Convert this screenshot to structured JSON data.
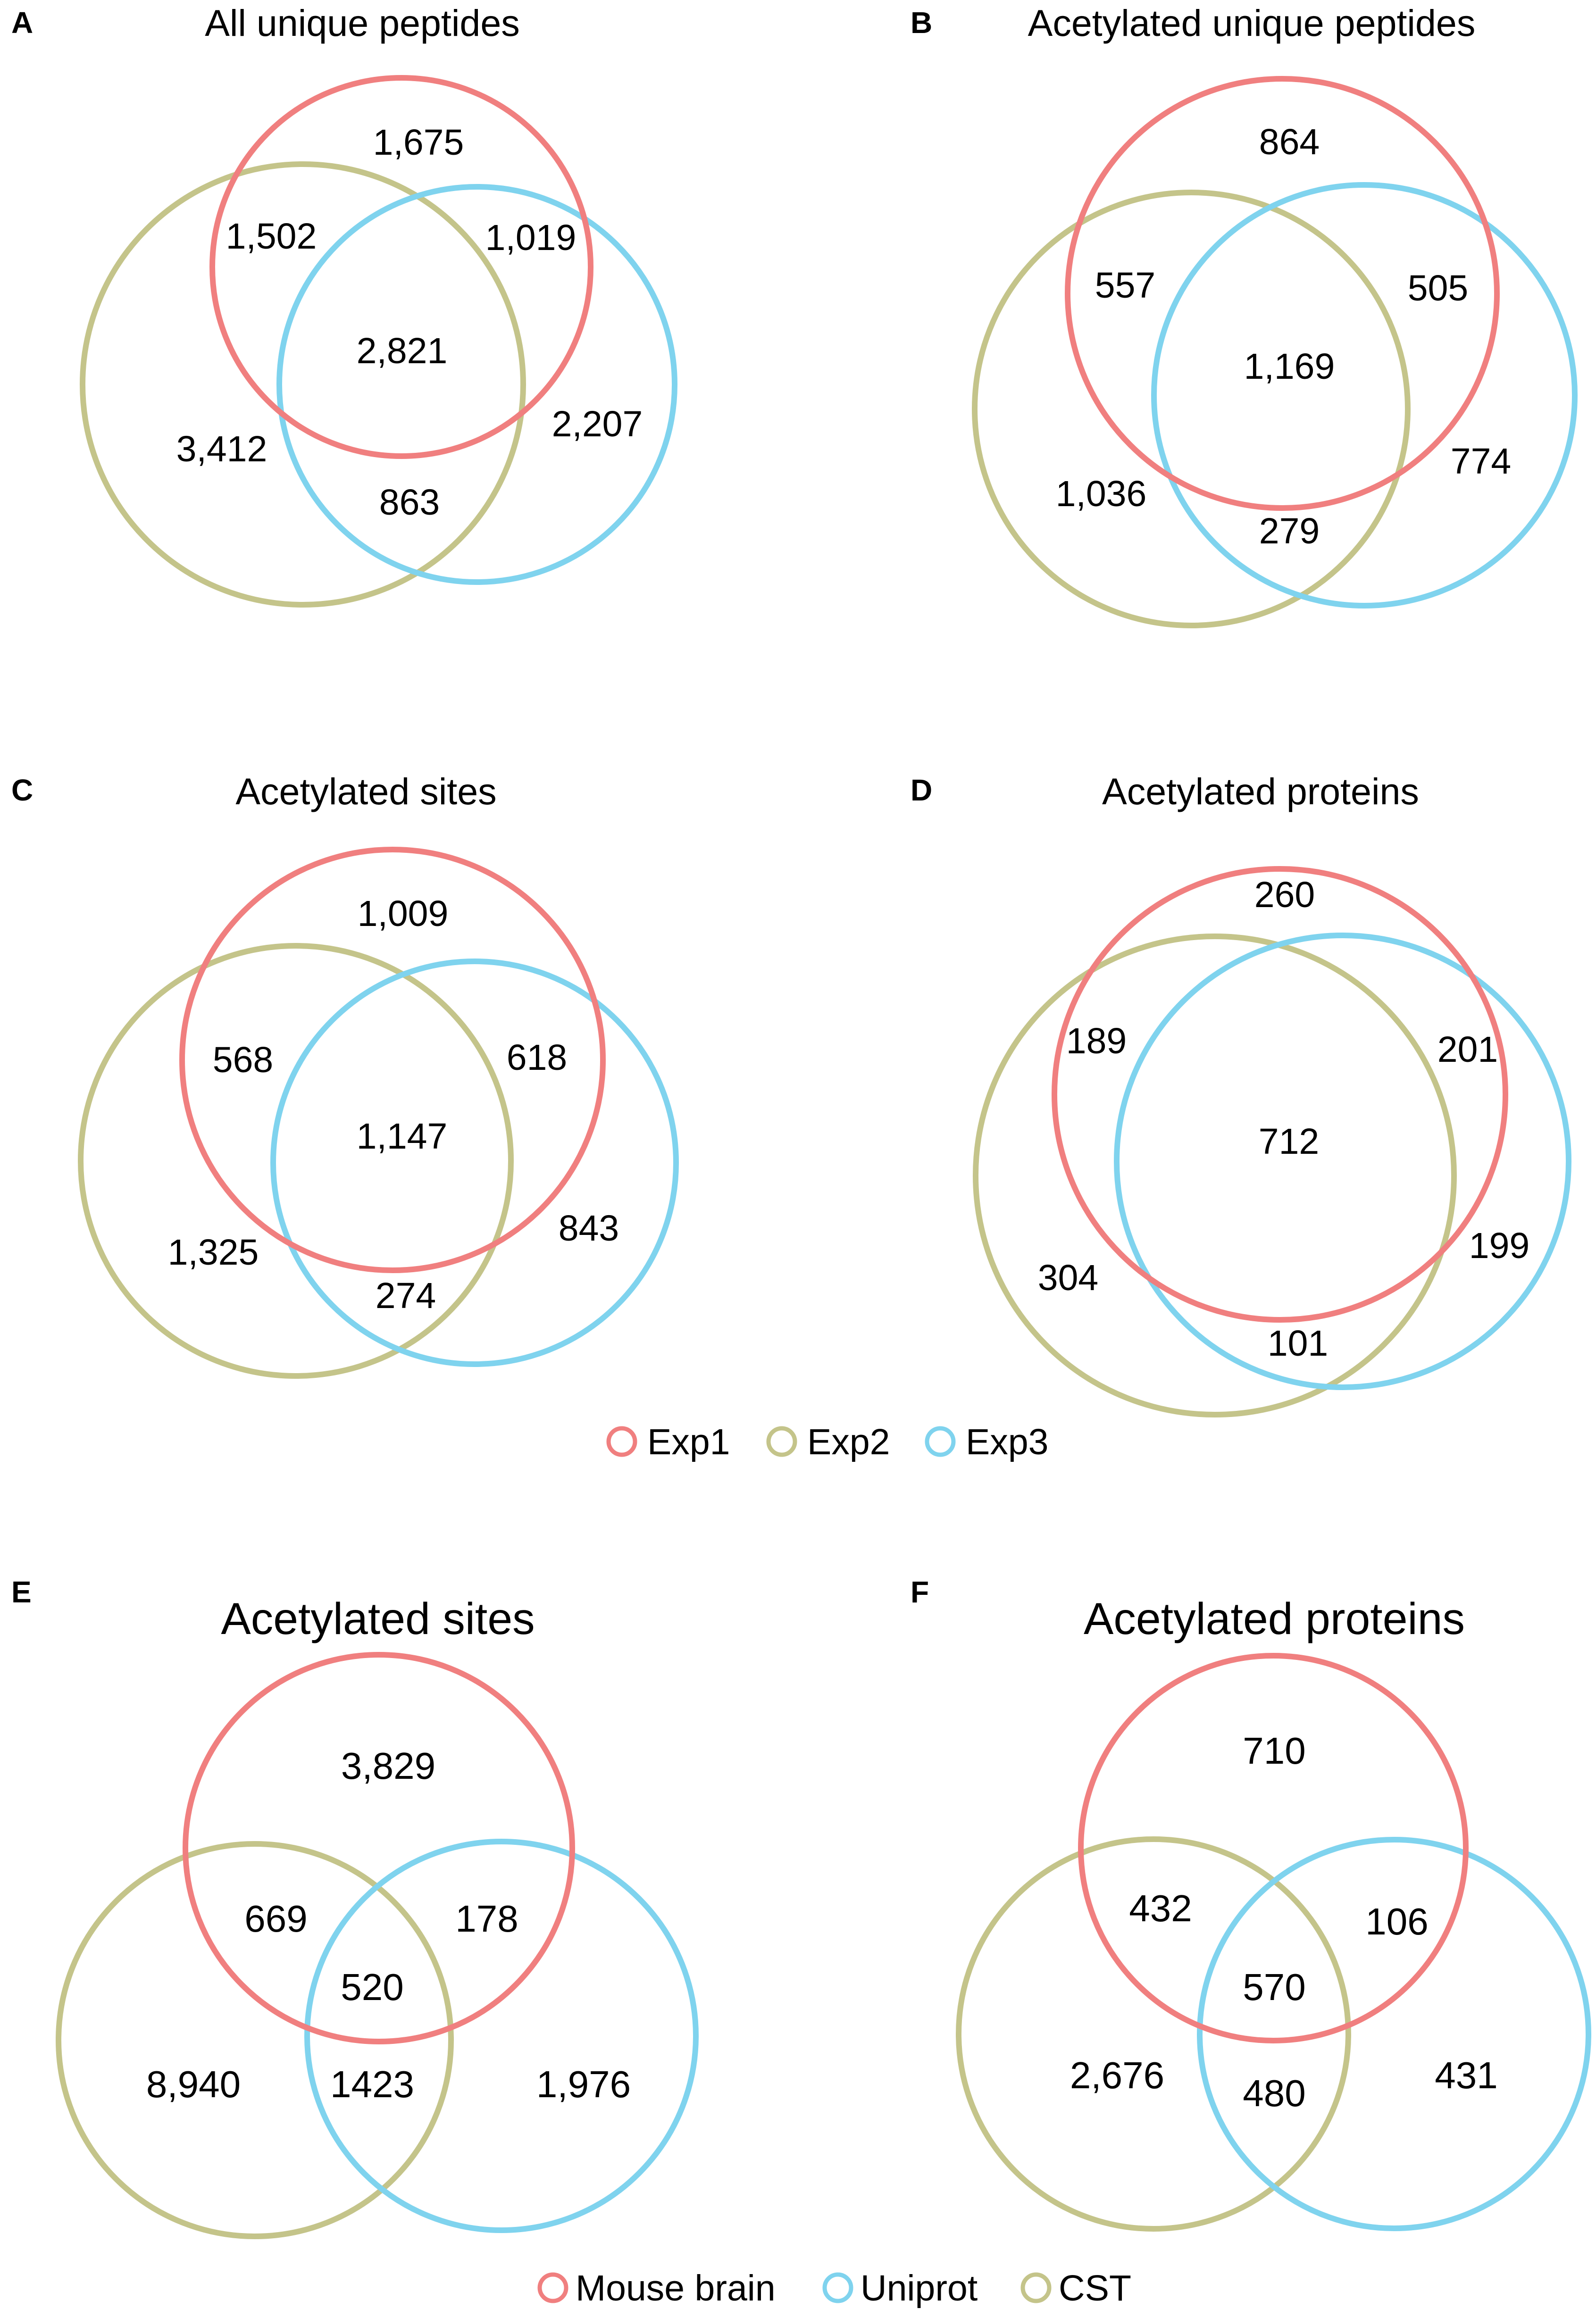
{
  "colors": {
    "red": "#F07F7F",
    "olive": "#C4C48A",
    "blue": "#7FD3EE"
  },
  "legend1": {
    "items": [
      {
        "label": "Exp1",
        "color": "#F07F7F"
      },
      {
        "label": "Exp2",
        "color": "#C4C48A"
      },
      {
        "label": "Exp3",
        "color": "#7FD3EE"
      }
    ]
  },
  "legend2": {
    "items": [
      {
        "label": "Mouse brain",
        "color": "#F07F7F"
      },
      {
        "label": "Uniprot",
        "color": "#7FD3EE"
      },
      {
        "label": "CST",
        "color": "#C4C48A"
      }
    ]
  },
  "chart_data": [
    {
      "type": "venn",
      "panel": "A",
      "title": "All unique peptides",
      "sets": [
        "Exp1",
        "Exp2",
        "Exp3"
      ],
      "regions": {
        "exp1_only": "1,675",
        "exp1_exp2": "1,502",
        "exp1_exp3": "1,019",
        "all_three": "2,821",
        "exp2_only": "3,412",
        "exp3_only": "2,207",
        "exp2_exp3": "863"
      }
    },
    {
      "type": "venn",
      "panel": "B",
      "title": "Acetylated unique peptides",
      "sets": [
        "Exp1",
        "Exp2",
        "Exp3"
      ],
      "regions": {
        "exp1_only": "864",
        "exp1_exp2": "557",
        "exp1_exp3": "505",
        "all_three": "1,169",
        "exp2_only": "1,036",
        "exp3_only": "774",
        "exp2_exp3": "279"
      }
    },
    {
      "type": "venn",
      "panel": "C",
      "title": "Acetylated sites",
      "sets": [
        "Exp1",
        "Exp2",
        "Exp3"
      ],
      "regions": {
        "exp1_only": "1,009",
        "exp1_exp2": "568",
        "exp1_exp3": "618",
        "all_three": "1,147",
        "exp2_only": "1,325",
        "exp3_only": "843",
        "exp2_exp3": "274"
      }
    },
    {
      "type": "venn",
      "panel": "D",
      "title": "Acetylated proteins",
      "sets": [
        "Exp1",
        "Exp2",
        "Exp3"
      ],
      "regions": {
        "exp1_only": "260",
        "exp1_exp2": "189",
        "exp1_exp3": "201",
        "all_three": "712",
        "exp2_only": "304",
        "exp3_only": "199",
        "exp2_exp3": "101"
      }
    },
    {
      "type": "venn",
      "panel": "E",
      "title": "Acetylated sites",
      "sets": [
        "Mouse brain",
        "CST",
        "Uniprot"
      ],
      "regions": {
        "mouse_only": "3,829",
        "mouse_cst": "669",
        "mouse_uniprot": "178",
        "all_three": "520",
        "cst_only": "8,940",
        "cst_uniprot": "1423",
        "uniprot_only": "1,976"
      }
    },
    {
      "type": "venn",
      "panel": "F",
      "title": "Acetylated proteins",
      "sets": [
        "Mouse brain",
        "CST",
        "Uniprot"
      ],
      "regions": {
        "mouse_only": "710",
        "mouse_cst": "432",
        "mouse_uniprot": "106",
        "all_three": "570",
        "cst_only": "2,676",
        "cst_uniprot": "480",
        "uniprot_only": "431"
      }
    }
  ]
}
